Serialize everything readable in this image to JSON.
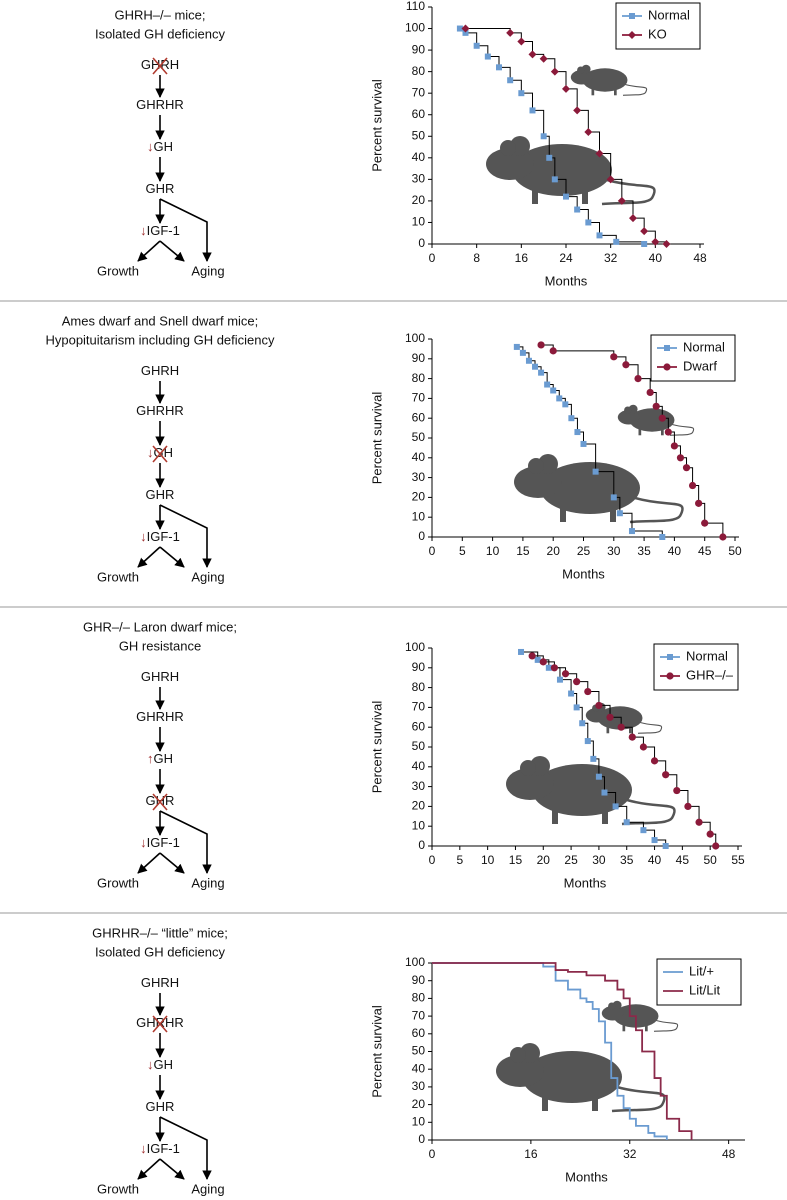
{
  "diagrams": [
    {
      "title": [
        "GHRH–/– mice;",
        "Isolated GH deficiency"
      ],
      "nodes": [
        {
          "label": "GHRH",
          "crossed": true
        },
        {
          "label": "GHRHR"
        },
        {
          "label": "GH",
          "mark": "↓"
        },
        {
          "label": "GHR"
        },
        {
          "label": "IGF-1",
          "mark": "↓"
        }
      ],
      "outcomes": [
        "Growth",
        "Aging"
      ]
    },
    {
      "title": [
        "Ames dwarf and Snell dwarf mice;",
        "Hypopituitarism including GH deficiency"
      ],
      "nodes": [
        {
          "label": "GHRH"
        },
        {
          "label": "GHRHR"
        },
        {
          "label": "GH",
          "mark": "↓",
          "crossed": true
        },
        {
          "label": "GHR"
        },
        {
          "label": "IGF-1",
          "mark": "↓"
        }
      ],
      "outcomes": [
        "Growth",
        "Aging"
      ]
    },
    {
      "title": [
        "GHR–/– Laron dwarf mice;",
        "GH resistance"
      ],
      "nodes": [
        {
          "label": "GHRH"
        },
        {
          "label": "GHRHR"
        },
        {
          "label": "GH",
          "mark": "↑"
        },
        {
          "label": "GHR",
          "crossed": true
        },
        {
          "label": "IGF-1",
          "mark": "↓"
        }
      ],
      "outcomes": [
        "Growth",
        "Aging"
      ]
    },
    {
      "title": [
        "GHRHR–/– “little” mice;",
        "Isolated GH deficiency"
      ],
      "nodes": [
        {
          "label": "GHRH"
        },
        {
          "label": "GHRHR",
          "crossed": true
        },
        {
          "label": "GH",
          "mark": "↓"
        },
        {
          "label": "GHR"
        },
        {
          "label": "IGF-1",
          "mark": "↓"
        }
      ],
      "outcomes": [
        "Growth",
        "Aging"
      ]
    }
  ],
  "chart_data": [
    {
      "type": "line",
      "step": true,
      "x_label": "Months",
      "y_label": "Percent survival",
      "legend": "upper right",
      "line_color": "#000000",
      "xlim": [
        0,
        48
      ],
      "xticks": [
        0,
        8,
        16,
        24,
        32,
        40,
        48
      ],
      "ylim": [
        0,
        110
      ],
      "yticks": [
        0,
        10,
        20,
        30,
        40,
        50,
        60,
        70,
        80,
        90,
        100,
        110
      ],
      "series": [
        {
          "name": "Normal",
          "color": "#6a9bd1",
          "marker": "square",
          "x": [
            5,
            6,
            8,
            10,
            12,
            14,
            16,
            18,
            20,
            21,
            22,
            24,
            26,
            28,
            30,
            33,
            38
          ],
          "values": [
            100,
            98,
            92,
            87,
            82,
            76,
            70,
            62,
            50,
            40,
            30,
            22,
            16,
            10,
            4,
            1,
            0
          ]
        },
        {
          "name": "KO",
          "color": "#8b1a3a",
          "marker": "diamond",
          "x": [
            6,
            14,
            16,
            18,
            20,
            22,
            24,
            26,
            28,
            30,
            32,
            34,
            36,
            38,
            40,
            42
          ],
          "values": [
            100,
            98,
            94,
            88,
            86,
            80,
            72,
            62,
            52,
            42,
            30,
            20,
            12,
            6,
            1,
            0
          ]
        }
      ]
    },
    {
      "type": "line",
      "step": true,
      "x_label": "Months",
      "y_label": "Percent survival",
      "legend": "upper right",
      "line_color": "#000000",
      "xlim": [
        0,
        50
      ],
      "xticks": [
        0,
        5,
        10,
        15,
        20,
        25,
        30,
        35,
        40,
        45,
        50
      ],
      "ylim": [
        0,
        100
      ],
      "yticks": [
        0,
        10,
        20,
        30,
        40,
        50,
        60,
        70,
        80,
        90,
        100
      ],
      "series": [
        {
          "name": "Normal",
          "color": "#6a9bd1",
          "marker": "square",
          "x": [
            14,
            15,
            16,
            17,
            18,
            19,
            20,
            21,
            22,
            23,
            24,
            25,
            27,
            30,
            31,
            33,
            38
          ],
          "values": [
            96,
            93,
            89,
            86,
            83,
            77,
            74,
            70,
            67,
            60,
            53,
            47,
            33,
            20,
            12,
            3,
            0
          ]
        },
        {
          "name": "Dwarf",
          "color": "#8b1a3a",
          "marker": "circle",
          "x": [
            18,
            20,
            30,
            32,
            34,
            36,
            37,
            38,
            39,
            40,
            41,
            42,
            43,
            44,
            45,
            48
          ],
          "values": [
            97,
            94,
            91,
            87,
            80,
            73,
            66,
            60,
            53,
            46,
            40,
            35,
            26,
            17,
            7,
            0
          ]
        }
      ]
    },
    {
      "type": "line",
      "step": true,
      "x_label": "Months",
      "y_label": "Percent survival",
      "legend": "upper right",
      "line_color": "#000000",
      "xlim": [
        0,
        55
      ],
      "xticks": [
        0,
        5,
        10,
        15,
        20,
        25,
        30,
        35,
        40,
        45,
        50,
        55
      ],
      "ylim": [
        0,
        100
      ],
      "yticks": [
        0,
        10,
        20,
        30,
        40,
        50,
        60,
        70,
        80,
        90,
        100
      ],
      "series": [
        {
          "name": "Normal",
          "color": "#6a9bd1",
          "marker": "square",
          "x": [
            16,
            19,
            21,
            23,
            25,
            26,
            27,
            28,
            29,
            30,
            31,
            33,
            35,
            38,
            40,
            42
          ],
          "values": [
            98,
            94,
            90,
            84,
            77,
            70,
            62,
            53,
            44,
            35,
            27,
            20,
            12,
            8,
            3,
            0
          ]
        },
        {
          "name": "GHR–/–",
          "color": "#8b1a3a",
          "marker": "circle",
          "x": [
            18,
            20,
            22,
            24,
            26,
            28,
            30,
            32,
            34,
            36,
            38,
            40,
            42,
            44,
            46,
            48,
            50,
            51
          ],
          "values": [
            96,
            93,
            90,
            87,
            83,
            78,
            71,
            65,
            60,
            55,
            50,
            43,
            36,
            28,
            20,
            12,
            6,
            0
          ]
        }
      ]
    },
    {
      "type": "line",
      "step": true,
      "x_label": "Months",
      "y_label": "Percent survival",
      "legend": "upper right",
      "xlim": [
        0,
        50
      ],
      "xticks": [
        0,
        16,
        32,
        48
      ],
      "ylim": [
        0,
        100
      ],
      "yticks": [
        0,
        10,
        20,
        30,
        40,
        50,
        60,
        70,
        80,
        90,
        100
      ],
      "series": [
        {
          "name": "Lit/+",
          "color": "#6a9bd1",
          "x": [
            0,
            17,
            18,
            20,
            22,
            24,
            25,
            26,
            27,
            28,
            29,
            30,
            31,
            32,
            33,
            35,
            36,
            38
          ],
          "values": [
            100,
            100,
            98,
            90,
            85,
            80,
            78,
            74,
            67,
            55,
            35,
            25,
            18,
            12,
            8,
            4,
            2,
            0
          ]
        },
        {
          "name": "Lit/Lit",
          "color": "#8b2a4a",
          "x": [
            0,
            18,
            20,
            22,
            25,
            28,
            30,
            31,
            32,
            33,
            34,
            36,
            37,
            38,
            40,
            42
          ],
          "values": [
            100,
            100,
            96,
            95,
            93,
            90,
            85,
            80,
            70,
            62,
            50,
            35,
            25,
            12,
            5,
            0
          ]
        }
      ]
    }
  ]
}
